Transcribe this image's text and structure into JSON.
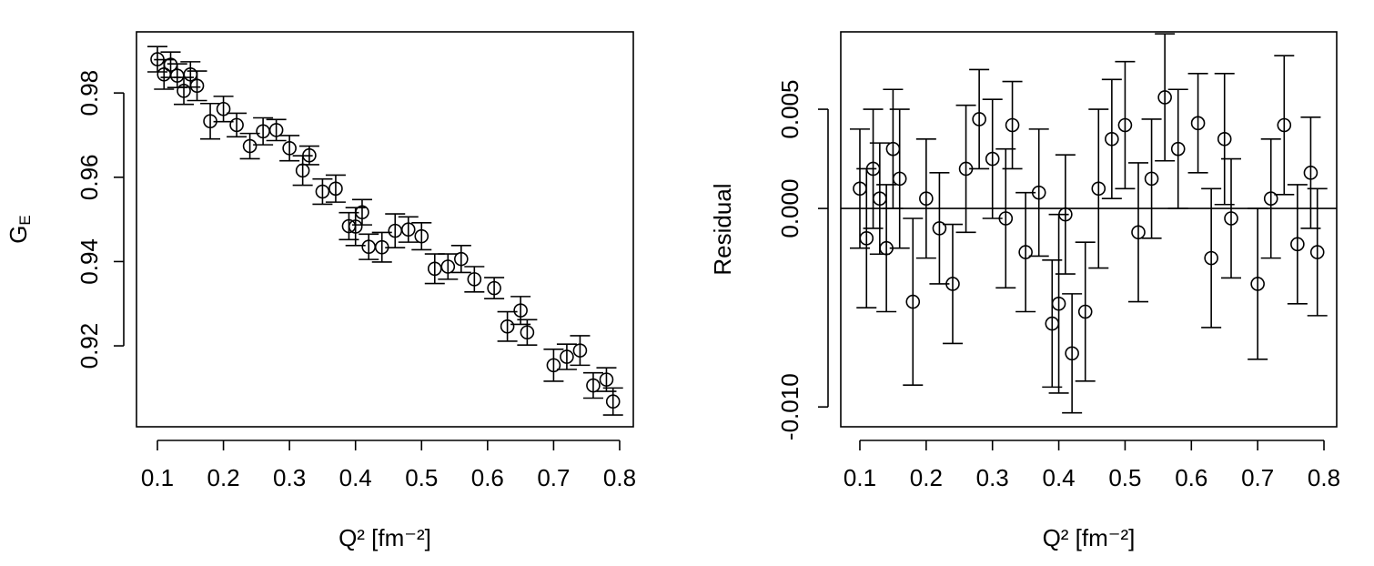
{
  "chart_data": [
    {
      "type": "scatter",
      "x_label": "Q² [fm⁻²]",
      "y_label": "G",
      "y_label_sub": "E",
      "x": [
        0.1,
        0.11,
        0.12,
        0.13,
        0.14,
        0.15,
        0.16,
        0.18,
        0.2,
        0.22,
        0.24,
        0.26,
        0.28,
        0.3,
        0.32,
        0.33,
        0.35,
        0.37,
        0.39,
        0.4,
        0.41,
        0.42,
        0.44,
        0.46,
        0.48,
        0.5,
        0.52,
        0.54,
        0.56,
        0.58,
        0.61,
        0.63,
        0.65,
        0.66,
        0.7,
        0.72,
        0.74,
        0.76,
        0.78,
        0.79
      ],
      "values": [
        0.988,
        0.9844,
        0.9867,
        0.9841,
        0.9805,
        0.9844,
        0.9817,
        0.9733,
        0.9762,
        0.9724,
        0.9674,
        0.9709,
        0.9712,
        0.9669,
        0.9616,
        0.9652,
        0.9566,
        0.9573,
        0.9484,
        0.9483,
        0.9517,
        0.9435,
        0.9434,
        0.9473,
        0.9476,
        0.946,
        0.9383,
        0.9388,
        0.9406,
        0.9358,
        0.9337,
        0.9246,
        0.9284,
        0.9232,
        0.9154,
        0.9174,
        0.9189,
        0.9106,
        0.912,
        0.9068
      ],
      "errors": [
        0.003,
        0.0035,
        0.003,
        0.0028,
        0.0032,
        0.003,
        0.0035,
        0.0042,
        0.003,
        0.0028,
        0.003,
        0.0032,
        0.0025,
        0.003,
        0.0035,
        0.0022,
        0.003,
        0.0032,
        0.0032,
        0.0045,
        0.003,
        0.003,
        0.0035,
        0.004,
        0.003,
        0.0032,
        0.0035,
        0.003,
        0.0032,
        0.003,
        0.0025,
        0.0035,
        0.0033,
        0.003,
        0.0038,
        0.003,
        0.0035,
        0.003,
        0.0028,
        0.0032
      ],
      "color": "#000000",
      "xlim": [
        0.0683,
        0.8207
      ],
      "ylim": [
        0.9008,
        0.9945
      ],
      "xticks": [
        0.1,
        0.2,
        0.3,
        0.4,
        0.5,
        0.6,
        0.7,
        0.8
      ],
      "yticks": [
        0.92,
        0.94,
        0.96,
        0.98
      ]
    },
    {
      "type": "scatter",
      "x_label": "Q² [fm⁻²]",
      "y_label": "Residual",
      "x": [
        0.1,
        0.11,
        0.12,
        0.13,
        0.14,
        0.15,
        0.16,
        0.18,
        0.2,
        0.22,
        0.24,
        0.26,
        0.28,
        0.3,
        0.32,
        0.33,
        0.35,
        0.37,
        0.39,
        0.4,
        0.41,
        0.42,
        0.44,
        0.46,
        0.48,
        0.5,
        0.52,
        0.54,
        0.56,
        0.58,
        0.61,
        0.63,
        0.65,
        0.66,
        0.7,
        0.72,
        0.74,
        0.76,
        0.78,
        0.79
      ],
      "values": [
        0.001,
        -0.0015,
        0.002,
        0.0005,
        -0.002,
        0.003,
        0.0015,
        -0.0047,
        0.0005,
        -0.001,
        -0.0038,
        0.002,
        0.0045,
        0.0025,
        -0.0005,
        0.0042,
        -0.0022,
        0.0008,
        -0.0058,
        -0.0048,
        -0.0003,
        -0.0073,
        -0.0052,
        0.001,
        0.0035,
        0.0042,
        -0.0012,
        0.0015,
        0.0056,
        0.003,
        0.0043,
        -0.0025,
        0.0035,
        -0.0005,
        -0.0038,
        0.0005,
        0.0042,
        -0.0018,
        0.0018,
        -0.0022
      ],
      "errors": [
        0.003,
        0.0035,
        0.003,
        0.0028,
        0.0032,
        0.003,
        0.0035,
        0.0042,
        0.003,
        0.0028,
        0.003,
        0.0032,
        0.0025,
        0.003,
        0.0035,
        0.0022,
        0.003,
        0.0032,
        0.0032,
        0.0045,
        0.003,
        0.003,
        0.0035,
        0.004,
        0.003,
        0.0032,
        0.0035,
        0.003,
        0.0032,
        0.003,
        0.0025,
        0.0035,
        0.0033,
        0.003,
        0.0038,
        0.003,
        0.0035,
        0.003,
        0.0028,
        0.0032
      ],
      "color": "#000000",
      "hline": 0,
      "xlim": [
        0.0712,
        0.8192
      ],
      "ylim": [
        -0.011,
        0.0089
      ],
      "xticks": [
        0.1,
        0.2,
        0.3,
        0.4,
        0.5,
        0.6,
        0.7,
        0.8
      ],
      "yticks": [
        {
          "value": -0.01,
          "label": "-0.010"
        },
        {
          "value": 0,
          "label": "0.000"
        },
        0.005
      ]
    }
  ]
}
